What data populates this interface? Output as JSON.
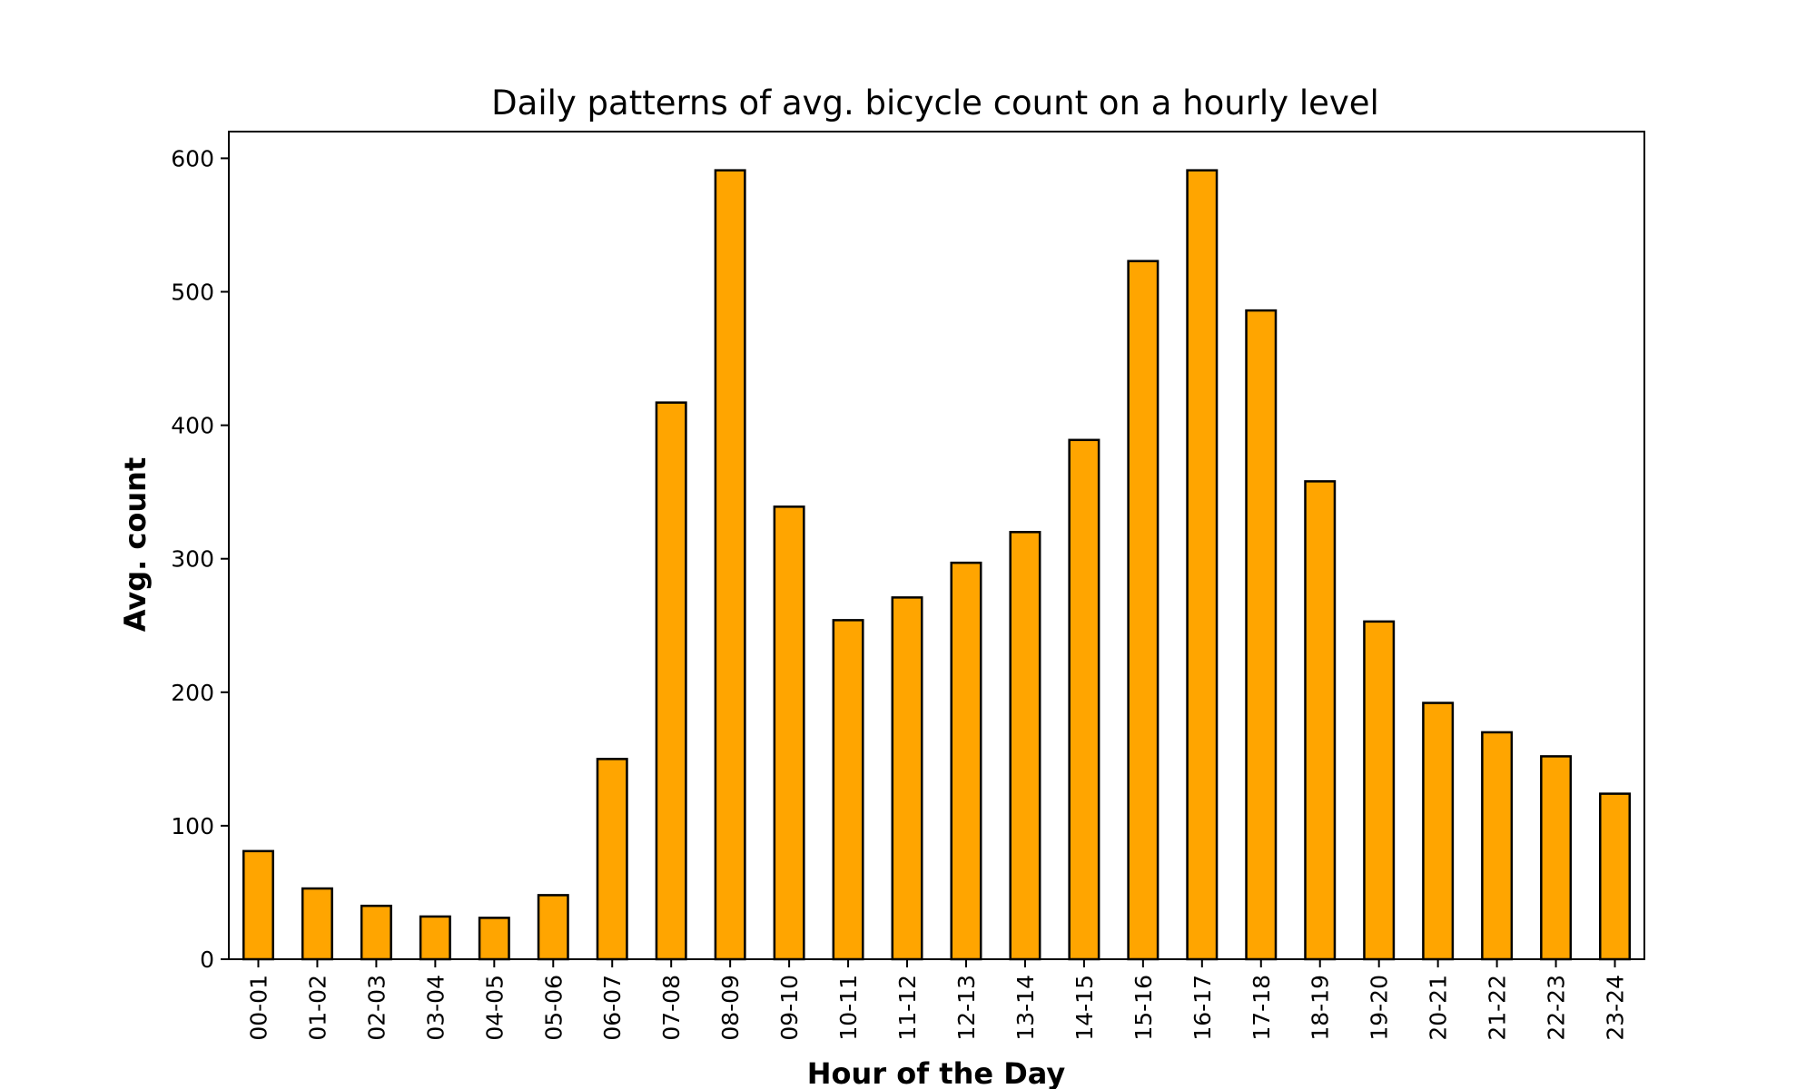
{
  "chart_data": {
    "type": "bar",
    "title": "Daily patterns of avg. bicycle count on a hourly level",
    "xlabel": "Hour of the Day",
    "ylabel": "Avg. count",
    "categories": [
      "00-01",
      "01-02",
      "02-03",
      "03-04",
      "04-05",
      "05-06",
      "06-07",
      "07-08",
      "08-09",
      "09-10",
      "10-11",
      "11-12",
      "12-13",
      "13-14",
      "14-15",
      "15-16",
      "16-17",
      "17-18",
      "18-19",
      "19-20",
      "20-21",
      "21-22",
      "22-23",
      "23-24"
    ],
    "values": [
      81,
      53,
      40,
      32,
      31,
      48,
      150,
      417,
      591,
      339,
      254,
      271,
      297,
      320,
      389,
      523,
      591,
      486,
      358,
      253,
      192,
      170,
      152,
      124
    ],
    "ylim": [
      0,
      620
    ],
    "yticks": [
      0,
      100,
      200,
      300,
      400,
      500,
      600
    ],
    "grid": false,
    "bar_color": "#FFA500",
    "edge_color": "#000000"
  }
}
